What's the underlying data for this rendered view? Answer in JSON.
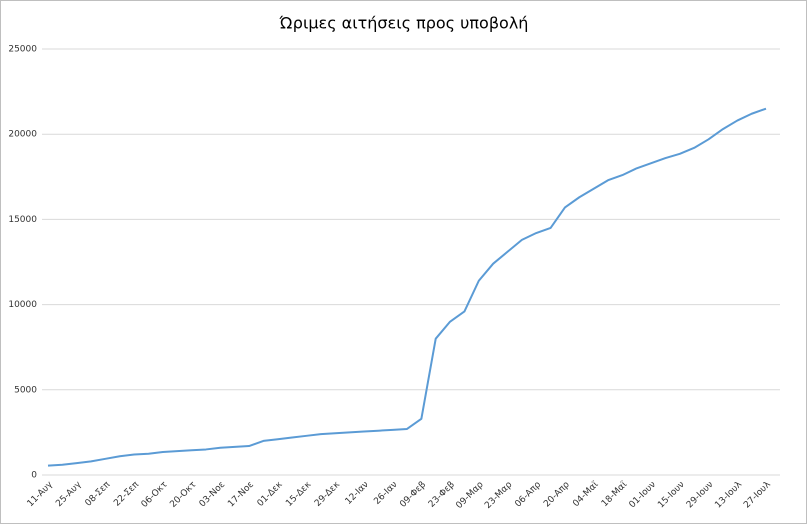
{
  "chart_data": {
    "type": "line",
    "title": "Ώριμες αιτήσεις προς υποβολή",
    "categories": [
      "11-Αυγ",
      null,
      "25-Αυγ",
      null,
      "08-Σεπ",
      null,
      "22-Σεπ",
      null,
      "06-Οκτ",
      null,
      "20-Οκτ",
      null,
      "03-Νοε",
      null,
      "17-Νοε",
      null,
      "01-Δεκ",
      null,
      "15-Δεκ",
      null,
      "29-Δεκ",
      null,
      "12-Ιαν",
      null,
      "26-Ιαν",
      null,
      "09-Φεβ",
      null,
      "23-Φεβ",
      null,
      "09-Μαρ",
      null,
      "23-Μαρ",
      null,
      "06-Απρ",
      null,
      "20-Απρ",
      null,
      "04-Μαϊ",
      null,
      "18-Μαϊ",
      null,
      "01-Ιουν",
      null,
      "15-Ιουν",
      null,
      "29-Ιουν",
      null,
      "13-Ιουλ",
      null,
      "27-Ιουλ"
    ],
    "values": [
      550,
      600,
      700,
      800,
      950,
      1100,
      1200,
      1250,
      1350,
      1400,
      1450,
      1500,
      1600,
      1650,
      1700,
      2000,
      2100,
      2200,
      2300,
      2400,
      2450,
      2500,
      2550,
      2600,
      2650,
      2700,
      3300,
      8000,
      9000,
      9600,
      11400,
      12400,
      13100,
      13800,
      14200,
      14500,
      15700,
      16300,
      16800,
      17300,
      17600,
      18000,
      18300,
      18600,
      18850,
      19200,
      19700,
      20300,
      20800,
      21200,
      21500
    ],
    "color": "#5b9bd5",
    "ylim": [
      0,
      25000
    ],
    "yticks": [
      0,
      5000,
      10000,
      15000,
      20000,
      25000
    ],
    "grid": true
  }
}
